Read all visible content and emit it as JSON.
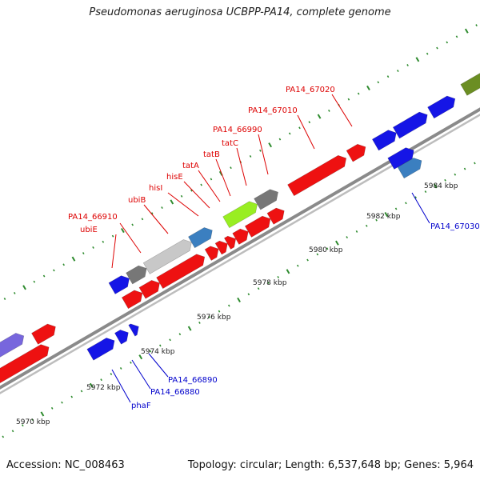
{
  "map": {
    "title": "Pseudomonas aeruginosa UCBPP-PA14, complete genome",
    "accession": "Accession: NC_008463",
    "summary": "Topology: circular; Length: 6,537,648 bp; Genes: 5,964",
    "colors": {
      "backbone": "#8a8a8a",
      "tick": "#2e8b2e",
      "forward_gene": "#1515e6",
      "reverse_gene": "#ee1111",
      "steelblue": "#3b7fc0",
      "grey": "#777777",
      "lightgrey": "#c8c8c8",
      "lime": "#99ee22",
      "purple": "#7766dd",
      "olive": "#6b8e23",
      "label_red": "#dd0000",
      "label_blue": "#0000cc"
    },
    "scale_labels": [
      "5970 kbp",
      "5972 kbp",
      "5974 kbp",
      "5976 kbp",
      "5978 kbp",
      "5980 kbp",
      "5982 kbp",
      "5984 kbp"
    ],
    "gene_labels_upper": [
      "ubiE",
      "PA14_66910",
      "ubiB",
      "hisI",
      "hisE",
      "tatA",
      "tatB",
      "tatC",
      "PA14_66990",
      "PA14_67010",
      "PA14_67020"
    ],
    "gene_labels_lower": [
      "phaF",
      "PA14_66880",
      "PA14_66890",
      "PA14_67030"
    ]
  }
}
